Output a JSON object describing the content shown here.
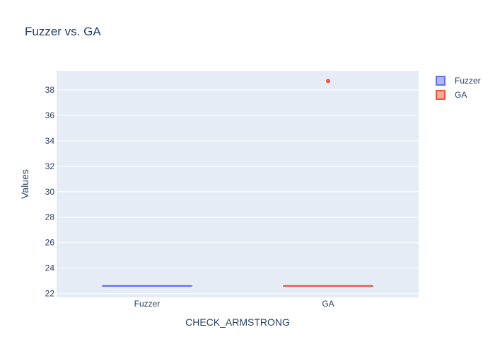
{
  "chart_data": {
    "type": "box",
    "title": "Fuzzer vs. GA",
    "xlabel": "CHECK_ARMSTRONG",
    "ylabel": "Values",
    "categories": [
      "Fuzzer",
      "GA"
    ],
    "ylim": [
      21.7,
      39.5
    ],
    "yticks": [
      22,
      24,
      26,
      28,
      30,
      32,
      34,
      36,
      38
    ],
    "grid": true,
    "legend_position": "top-right",
    "series": [
      {
        "name": "Fuzzer",
        "color": "#636efa",
        "category": "Fuzzer",
        "min": 22.6,
        "q1": 22.6,
        "median": 22.6,
        "q3": 22.6,
        "max": 22.6,
        "outliers": []
      },
      {
        "name": "GA",
        "color": "#ef553b",
        "category": "GA",
        "min": 22.6,
        "q1": 22.6,
        "median": 22.6,
        "q3": 22.6,
        "max": 22.6,
        "outliers": [
          38.7
        ]
      }
    ]
  }
}
